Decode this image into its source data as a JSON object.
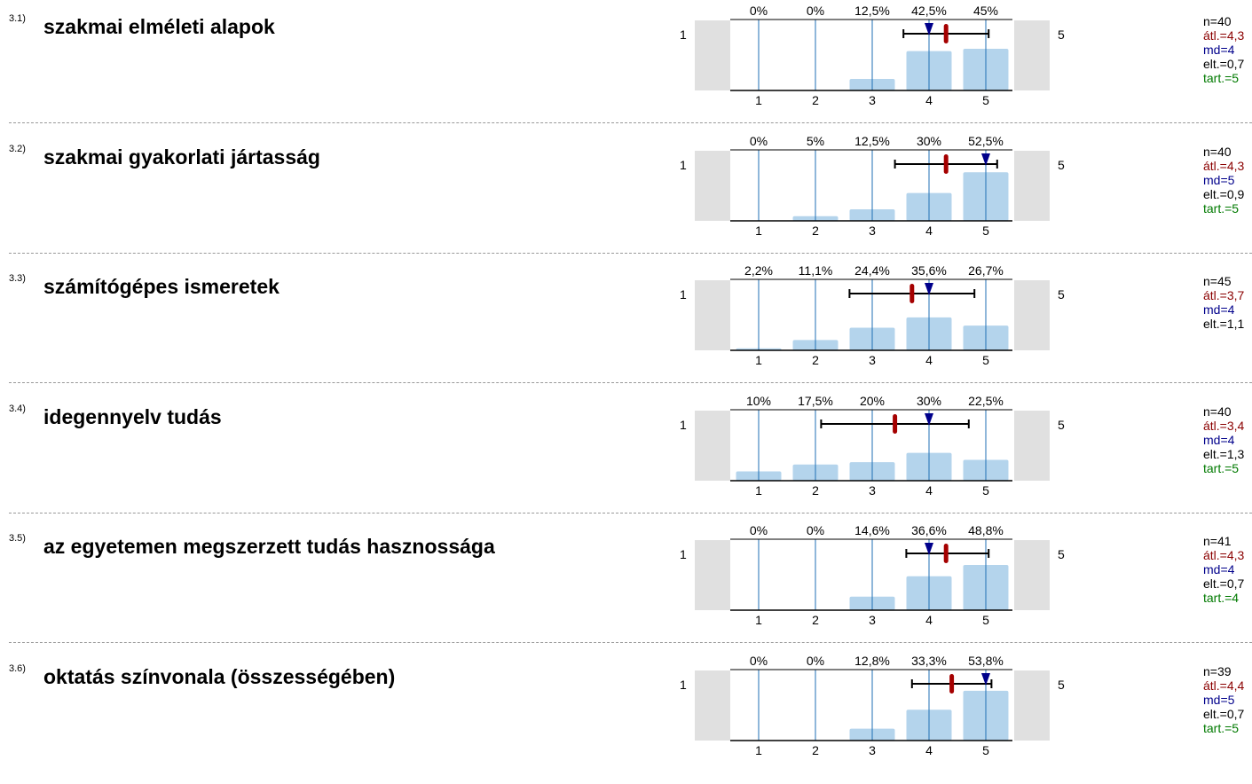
{
  "scale": {
    "left_label": "1",
    "right_label": "5",
    "categories": [
      "1",
      "2",
      "3",
      "4",
      "5"
    ]
  },
  "colors": {
    "bar": "#b4d4ec",
    "grid": "#1f6fb5",
    "mean": "#a50000",
    "median": "#00008b",
    "mode": "#007a00",
    "side": "#e0e0e0"
  },
  "chart_data": [
    {
      "type": "bar",
      "number": "3.1)",
      "title": "szakmai elméleti alapok",
      "categories": [
        "1",
        "2",
        "3",
        "4",
        "5"
      ],
      "values": [
        0,
        0,
        12.5,
        42.5,
        45
      ],
      "value_labels": [
        "0%",
        "0%",
        "12,5%",
        "42,5%",
        "45%"
      ],
      "ylim": [
        0,
        100
      ],
      "mean": 4.3,
      "median": 4,
      "sd": 0.7,
      "range": [
        3.55,
        5.05
      ],
      "stats": {
        "n": "n=40",
        "mean": "átl.=4,3",
        "md": "md=4",
        "sd": "elt.=0,7",
        "mode": "tart.=5"
      }
    },
    {
      "type": "bar",
      "number": "3.2)",
      "title": "szakmai gyakorlati jártasság",
      "categories": [
        "1",
        "2",
        "3",
        "4",
        "5"
      ],
      "values": [
        0,
        5,
        12.5,
        30,
        52.5
      ],
      "value_labels": [
        "0%",
        "5%",
        "12,5%",
        "30%",
        "52,5%"
      ],
      "ylim": [
        0,
        100
      ],
      "mean": 4.3,
      "median": 5,
      "sd": 0.9,
      "range": [
        3.4,
        5.2
      ],
      "stats": {
        "n": "n=40",
        "mean": "átl.=4,3",
        "md": "md=5",
        "sd": "elt.=0,9",
        "mode": "tart.=5"
      }
    },
    {
      "type": "bar",
      "number": "3.3)",
      "title": "számítógépes ismeretek",
      "categories": [
        "1",
        "2",
        "3",
        "4",
        "5"
      ],
      "values": [
        2.2,
        11.1,
        24.4,
        35.6,
        26.7
      ],
      "value_labels": [
        "2,2%",
        "11,1%",
        "24,4%",
        "35,6%",
        "26,7%"
      ],
      "ylim": [
        0,
        100
      ],
      "mean": 3.7,
      "median": 4,
      "sd": 1.1,
      "range": [
        2.6,
        4.8
      ],
      "stats": {
        "n": "n=45",
        "mean": "átl.=3,7",
        "md": "md=4",
        "sd": "elt.=1,1",
        "mode": ""
      }
    },
    {
      "type": "bar",
      "number": "3.4)",
      "title": "idegennyelv tudás",
      "categories": [
        "1",
        "2",
        "3",
        "4",
        "5"
      ],
      "values": [
        10,
        17.5,
        20,
        30,
        22.5
      ],
      "value_labels": [
        "10%",
        "17,5%",
        "20%",
        "30%",
        "22,5%"
      ],
      "ylim": [
        0,
        100
      ],
      "mean": 3.4,
      "median": 4,
      "sd": 1.3,
      "range": [
        2.1,
        4.7
      ],
      "stats": {
        "n": "n=40",
        "mean": "átl.=3,4",
        "md": "md=4",
        "sd": "elt.=1,3",
        "mode": "tart.=5"
      }
    },
    {
      "type": "bar",
      "number": "3.5)",
      "title": "az egyetemen megszerzett tudás hasznossága",
      "categories": [
        "1",
        "2",
        "3",
        "4",
        "5"
      ],
      "values": [
        0,
        0,
        14.6,
        36.6,
        48.8
      ],
      "value_labels": [
        "0%",
        "0%",
        "14,6%",
        "36,6%",
        "48,8%"
      ],
      "ylim": [
        0,
        100
      ],
      "mean": 4.3,
      "median": 4,
      "sd": 0.7,
      "range": [
        3.6,
        5.05
      ],
      "stats": {
        "n": "n=41",
        "mean": "átl.=4,3",
        "md": "md=4",
        "sd": "elt.=0,7",
        "mode": "tart.=4"
      }
    },
    {
      "type": "bar",
      "number": "3.6)",
      "title": "oktatás színvonala (összességében)",
      "categories": [
        "1",
        "2",
        "3",
        "4",
        "5"
      ],
      "values": [
        0,
        0,
        12.8,
        33.3,
        53.8
      ],
      "value_labels": [
        "0%",
        "0%",
        "12,8%",
        "33,3%",
        "53,8%"
      ],
      "ylim": [
        0,
        100
      ],
      "mean": 4.4,
      "median": 5,
      "sd": 0.7,
      "range": [
        3.7,
        5.1
      ],
      "stats": {
        "n": "n=39",
        "mean": "átl.=4,4",
        "md": "md=5",
        "sd": "elt.=0,7",
        "mode": "tart.=5"
      }
    }
  ]
}
